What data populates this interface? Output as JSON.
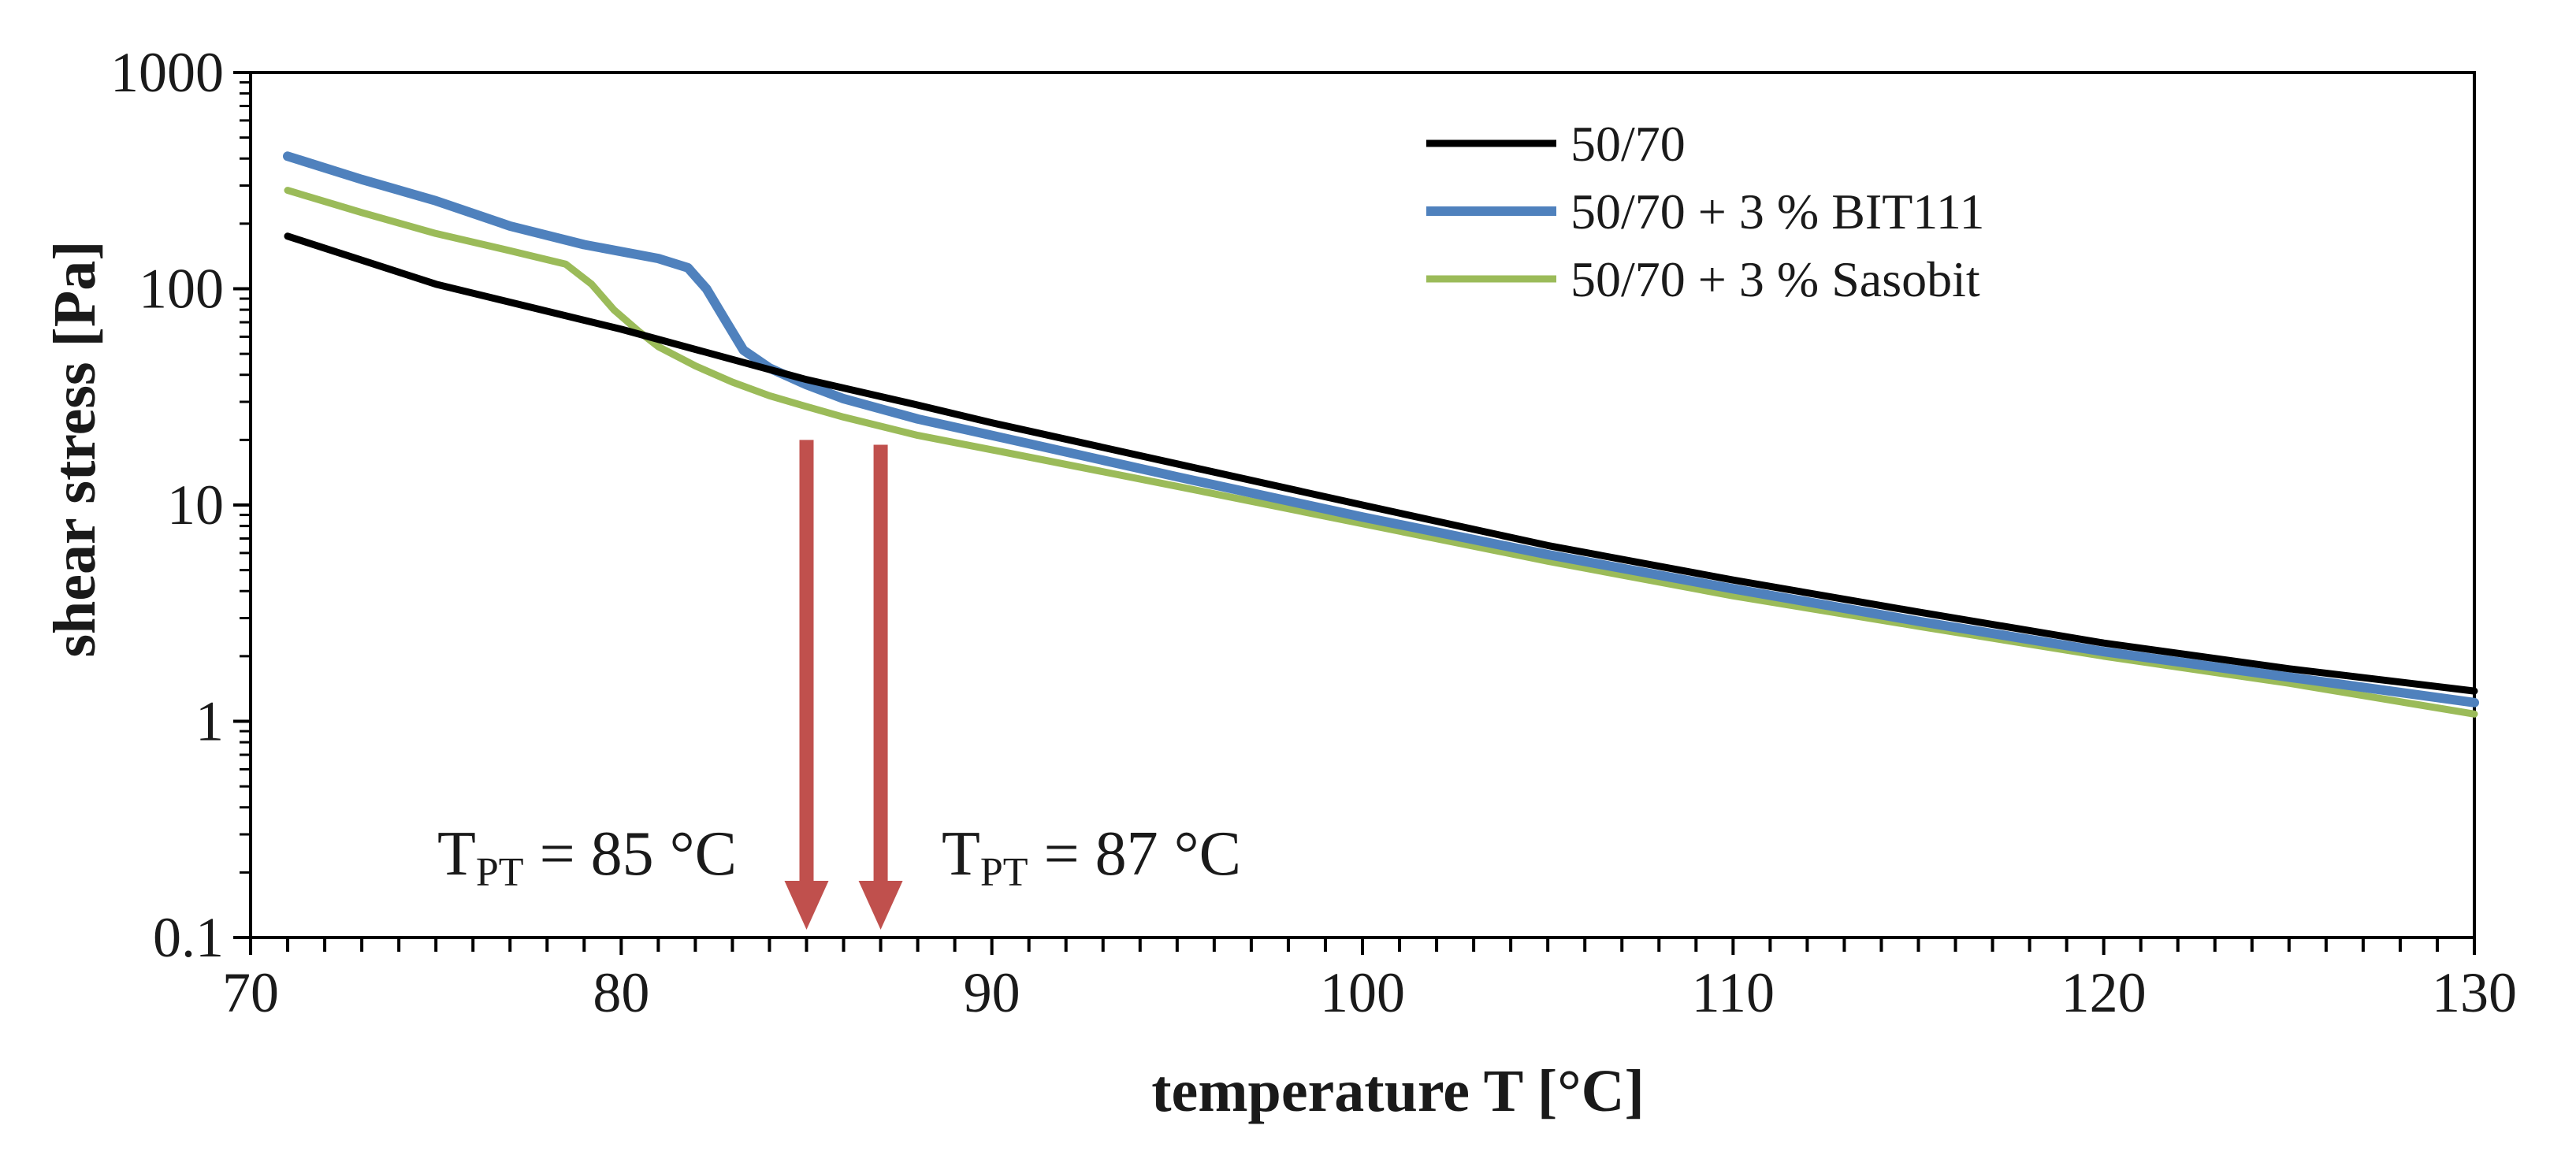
{
  "chart_data": {
    "type": "line",
    "title": "",
    "xlabel": "temperature T [°C]",
    "ylabel": "shear stress [Pa]",
    "xlim": [
      70,
      130
    ],
    "ylim": [
      0.1,
      1000
    ],
    "yscale": "log",
    "grid": false,
    "legend_position": "top-right",
    "x_ticks": [
      70,
      80,
      90,
      100,
      110,
      120,
      130
    ],
    "x_tick_labels": [
      "70",
      "80",
      "90",
      "100",
      "110",
      "120",
      "130"
    ],
    "y_ticks": [
      0.1,
      1,
      10,
      100,
      1000
    ],
    "y_tick_labels": [
      "0.1",
      "1",
      "10",
      "100",
      "1000"
    ],
    "x_minor_step": 1,
    "series": [
      {
        "name": "50/70",
        "color": "#000000",
        "x": [
          71,
          75,
          80,
          85,
          88,
          90,
          95,
          100,
          105,
          110,
          115,
          120,
          125,
          130
        ],
        "y": [
          175,
          105,
          65,
          38,
          29,
          24,
          15.5,
          10,
          6.5,
          4.5,
          3.2,
          2.3,
          1.75,
          1.38
        ]
      },
      {
        "name": "50/70 + 3 % BIT111",
        "color": "#4f81bd",
        "x": [
          71,
          73,
          75,
          77,
          79,
          81,
          81.8,
          82.3,
          82.8,
          83.3,
          84,
          85,
          86,
          88,
          90,
          95,
          100,
          105,
          110,
          115,
          120,
          125,
          130
        ],
        "y": [
          410,
          320,
          255,
          195,
          160,
          138,
          125,
          100,
          72,
          52,
          43,
          36,
          31,
          25,
          21,
          13.5,
          8.8,
          5.9,
          4.1,
          2.9,
          2.1,
          1.6,
          1.22
        ]
      },
      {
        "name": "50/70 + 3 % Sasobit",
        "color": "#9bbb59",
        "x": [
          71,
          73,
          75,
          77,
          78.5,
          79.2,
          79.8,
          80.5,
          81,
          82,
          83,
          84,
          85,
          86,
          88,
          90,
          95,
          100,
          105,
          110,
          115,
          120,
          125,
          130
        ],
        "y": [
          285,
          225,
          180,
          150,
          130,
          105,
          80,
          63,
          54,
          44,
          37,
          32,
          28.5,
          25.5,
          21,
          18,
          12.2,
          8.2,
          5.5,
          3.8,
          2.75,
          2.0,
          1.5,
          1.08
        ]
      }
    ],
    "annotations": [
      {
        "type": "arrow",
        "x": 85,
        "y_from": 20,
        "y_to": 0.1,
        "color": "#c0504d"
      },
      {
        "type": "arrow",
        "x": 87,
        "y_from": 19,
        "y_to": 0.1,
        "color": "#c0504d"
      },
      {
        "type": "text",
        "main": "T",
        "sub": "PT",
        "rest": " = 85 °C"
      },
      {
        "type": "text",
        "main": "T",
        "sub": "PT",
        "rest": " = 87 °C"
      }
    ]
  }
}
